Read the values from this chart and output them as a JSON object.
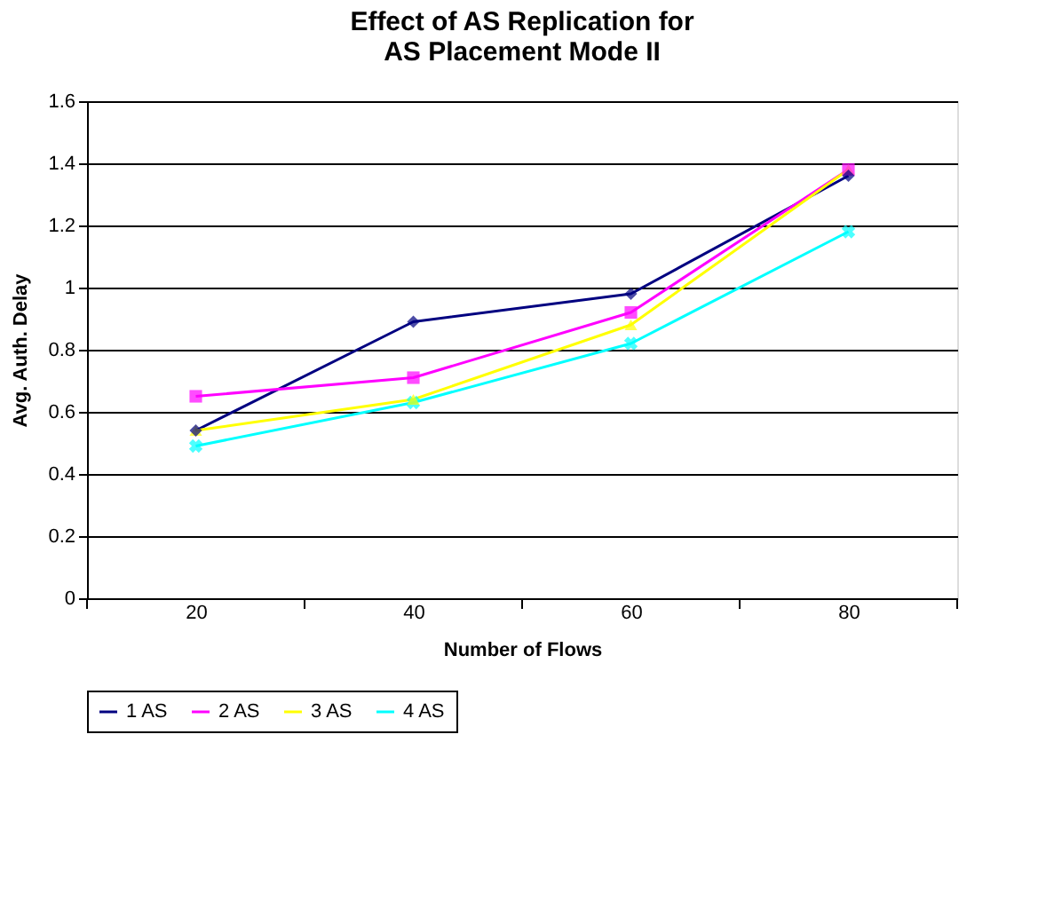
{
  "chart_data": {
    "type": "line",
    "title": "Effect of AS Replication for\nAS Placement Mode II",
    "xlabel": "Number of Flows",
    "ylabel": "Avg. Auth. Delay",
    "categories": [
      "20",
      "40",
      "60",
      "80"
    ],
    "series": [
      {
        "name": "1 AS",
        "color": "#000080",
        "marker": "diamond",
        "values": [
          0.54,
          0.89,
          0.98,
          1.36
        ]
      },
      {
        "name": "2 AS",
        "color": "#ff00ff",
        "marker": "square",
        "values": [
          0.65,
          0.71,
          0.92,
          1.38
        ]
      },
      {
        "name": "3 AS",
        "color": "#ffff00",
        "marker": "triangle",
        "values": [
          0.54,
          0.64,
          0.88,
          1.38
        ]
      },
      {
        "name": "4 AS",
        "color": "#00ffff",
        "marker": "cross",
        "values": [
          0.49,
          0.63,
          0.82,
          1.18
        ]
      }
    ],
    "ylim": [
      0,
      1.6
    ],
    "yticks": [
      0,
      0.2,
      0.4,
      0.6,
      0.8,
      1,
      1.2,
      1.4,
      1.6
    ],
    "grid": "y",
    "legend": "bottom",
    "line_style": "solid"
  }
}
